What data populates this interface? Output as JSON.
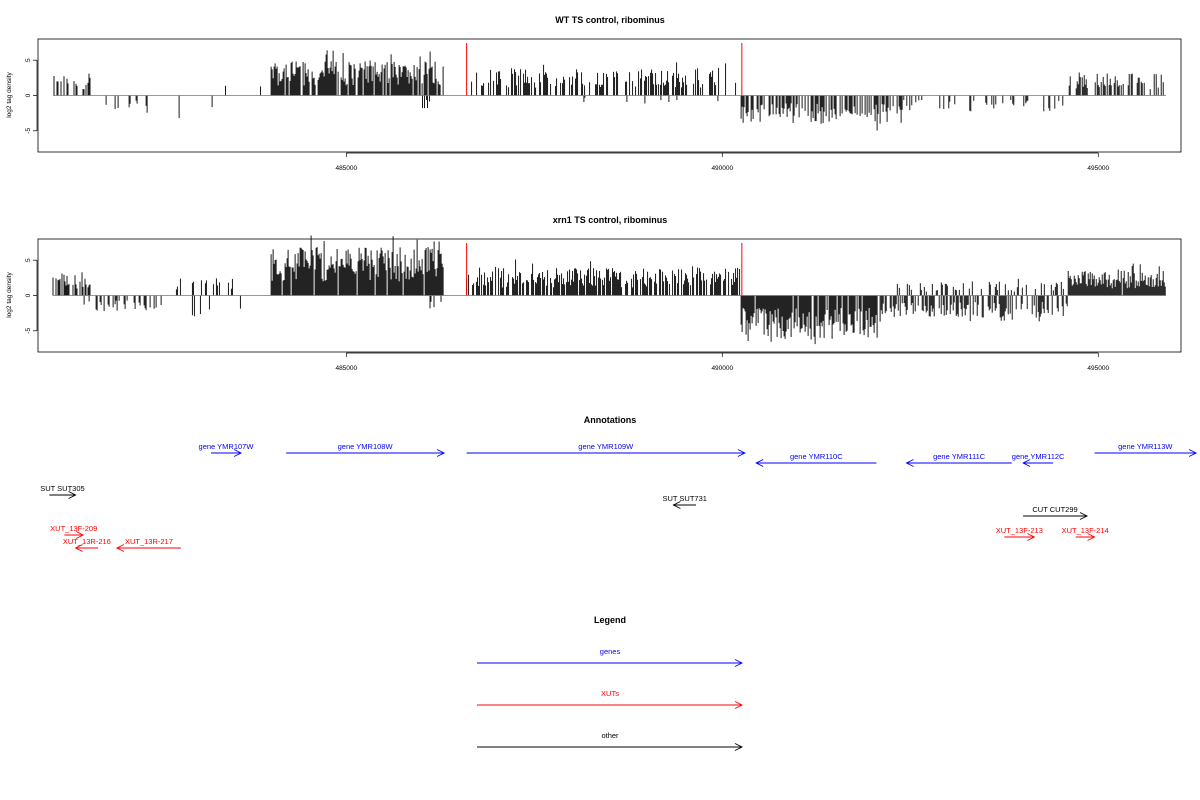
{
  "chart_data": [
    {
      "type": "bar",
      "title": "WT TS control, ribominus",
      "ylabel": "log2 tag density",
      "xlabel": "",
      "xlim": [
        480900,
        496100
      ],
      "ylim": [
        -8,
        8
      ],
      "xticks": [
        485000,
        490000,
        495000
      ],
      "yticks": [
        -5,
        0,
        5
      ],
      "grid": false,
      "markers": [
        486600,
        490260
      ],
      "marker_color": "#ff0000",
      "regions": [
        {
          "from": 481100,
          "to": 481600,
          "amp": 2.5,
          "density": 0.35
        },
        {
          "from": 481500,
          "to": 483300,
          "amp": -2.0,
          "density": 0.06
        },
        {
          "from": 483300,
          "to": 484000,
          "amp": 1.2,
          "density": 0.03
        },
        {
          "from": 484000,
          "to": 486300,
          "amp": 4.0,
          "density": 0.85
        },
        {
          "from": 486000,
          "to": 486400,
          "amp": -1.8,
          "density": 0.3
        },
        {
          "from": 486600,
          "to": 490250,
          "amp": 3.0,
          "density": 0.45
        },
        {
          "from": 488000,
          "to": 490000,
          "amp": -0.8,
          "density": 0.05
        },
        {
          "from": 490250,
          "to": 492400,
          "amp": -3.2,
          "density": 0.6
        },
        {
          "from": 492400,
          "to": 494600,
          "amp": -1.8,
          "density": 0.2
        },
        {
          "from": 494600,
          "to": 495900,
          "amp": 2.5,
          "density": 0.5
        }
      ]
    },
    {
      "type": "bar",
      "title": "xrn1 TS control, ribominus",
      "ylabel": "log2 tag density",
      "xlabel": "",
      "xlim": [
        480900,
        496100
      ],
      "ylim": [
        -8,
        8
      ],
      "xticks": [
        485000,
        490000,
        495000
      ],
      "yticks": [
        -5,
        0,
        5
      ],
      "grid": false,
      "markers": [
        486600,
        490260
      ],
      "marker_color": "#ff0000",
      "regions": [
        {
          "from": 481100,
          "to": 481600,
          "amp": 2.5,
          "density": 0.6
        },
        {
          "from": 481500,
          "to": 482600,
          "amp": -1.8,
          "density": 0.35
        },
        {
          "from": 482700,
          "to": 483600,
          "amp": 2.0,
          "density": 0.25
        },
        {
          "from": 482900,
          "to": 483600,
          "amp": -2.5,
          "density": 0.05
        },
        {
          "from": 484000,
          "to": 486300,
          "amp": 5.5,
          "density": 0.95
        },
        {
          "from": 486100,
          "to": 486300,
          "amp": -1.5,
          "density": 0.3
        },
        {
          "from": 486600,
          "to": 490250,
          "amp": 3.2,
          "density": 0.7
        },
        {
          "from": 490250,
          "to": 492100,
          "amp": -5.0,
          "density": 0.9
        },
        {
          "from": 492100,
          "to": 494600,
          "amp": -2.5,
          "density": 0.55
        },
        {
          "from": 492300,
          "to": 494600,
          "amp": 1.6,
          "density": 0.25
        },
        {
          "from": 494600,
          "to": 495900,
          "amp": 2.8,
          "density": 0.95
        }
      ]
    }
  ],
  "annotations": {
    "title": "Annotations",
    "features": [
      {
        "label": "gene YMR107W",
        "color": "#0000ff",
        "dir": 1,
        "from": 483200,
        "to": 483600,
        "row": 0
      },
      {
        "label": "gene YMR108W",
        "color": "#0000ff",
        "dir": 1,
        "from": 484200,
        "to": 486300,
        "row": 0
      },
      {
        "label": "gene YMR109W",
        "color": "#0000ff",
        "dir": 1,
        "from": 486600,
        "to": 490300,
        "row": 0
      },
      {
        "label": "gene YMR110C",
        "color": "#0000ff",
        "dir": -1,
        "from": 490450,
        "to": 492050,
        "row": 1
      },
      {
        "label": "gene YMR111C",
        "color": "#0000ff",
        "dir": -1,
        "from": 492450,
        "to": 493850,
        "row": 1
      },
      {
        "label": "gene YMR112C",
        "color": "#0000ff",
        "dir": -1,
        "from": 494000,
        "to": 494400,
        "row": 1
      },
      {
        "label": "gene YMR113W",
        "color": "#0000ff",
        "dir": 1,
        "from": 494950,
        "to": 496300,
        "row": 0
      },
      {
        "label": "SUT SUT305",
        "color": "#000000",
        "dir": 1,
        "from": 481050,
        "to": 481400,
        "row": 2
      },
      {
        "label": "SUT SUT731",
        "color": "#000000",
        "dir": -1,
        "from": 489350,
        "to": 489650,
        "row": 3
      },
      {
        "label": "CUT CUT299",
        "color": "#000000",
        "dir": 1,
        "from": 494000,
        "to": 494850,
        "row": 4
      },
      {
        "label": "XUT_13F-209",
        "color": "#ff0000",
        "dir": 1,
        "from": 481250,
        "to": 481500,
        "row": 5
      },
      {
        "label": "XUT_13R-216",
        "color": "#ff0000",
        "dir": -1,
        "from": 481400,
        "to": 481700,
        "row": 6
      },
      {
        "label": "XUT_13R-217",
        "color": "#ff0000",
        "dir": -1,
        "from": 481950,
        "to": 482800,
        "row": 6
      },
      {
        "label": "XUT_13F-213",
        "color": "#ff0000",
        "dir": 1,
        "from": 493750,
        "to": 494150,
        "row": 7
      },
      {
        "label": "XUT_13F-214",
        "color": "#ff0000",
        "dir": 1,
        "from": 494700,
        "to": 494950,
        "row": 7
      }
    ]
  },
  "legend": {
    "title": "Legend",
    "items": [
      {
        "label": "genes",
        "color": "#0000ff"
      },
      {
        "label": "XUTs",
        "color": "#ff0000"
      },
      {
        "label": "other",
        "color": "#000000"
      }
    ]
  }
}
